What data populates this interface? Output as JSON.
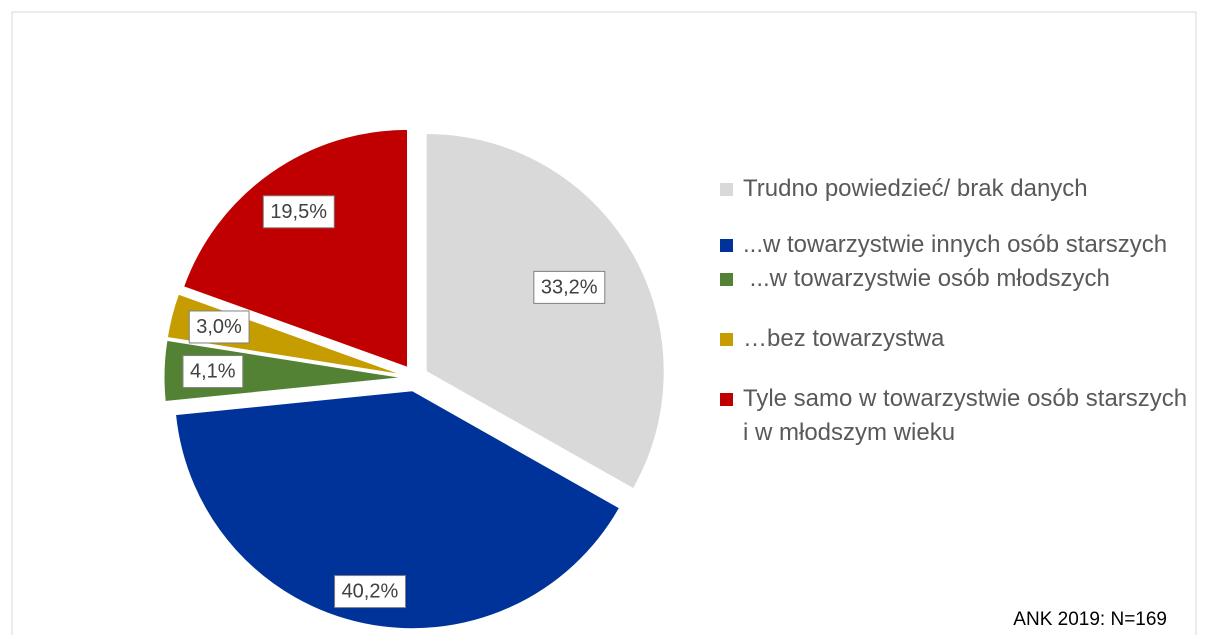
{
  "chart_data": {
    "type": "pie",
    "categories": [
      "Trudno powiedzieć/ brak danych",
      "...w towarzystwie innych osób starszych",
      " ...w towarzystwie osób młodszych",
      "…bez towarzystwa",
      "Tyle samo w towarzystwie osób starszych i w młodszym wieku"
    ],
    "values": [
      33.2,
      40.2,
      4.1,
      3.0,
      19.5
    ],
    "value_labels": [
      "33,2%",
      "40,2%",
      "4,1%",
      "3,0%",
      "19,5%"
    ],
    "colors": [
      "#d9d9d9",
      "#003399",
      "#548235",
      "#c59d00",
      "#c00000"
    ],
    "legend": "right",
    "annotation": "ANK 2019: N=169"
  }
}
